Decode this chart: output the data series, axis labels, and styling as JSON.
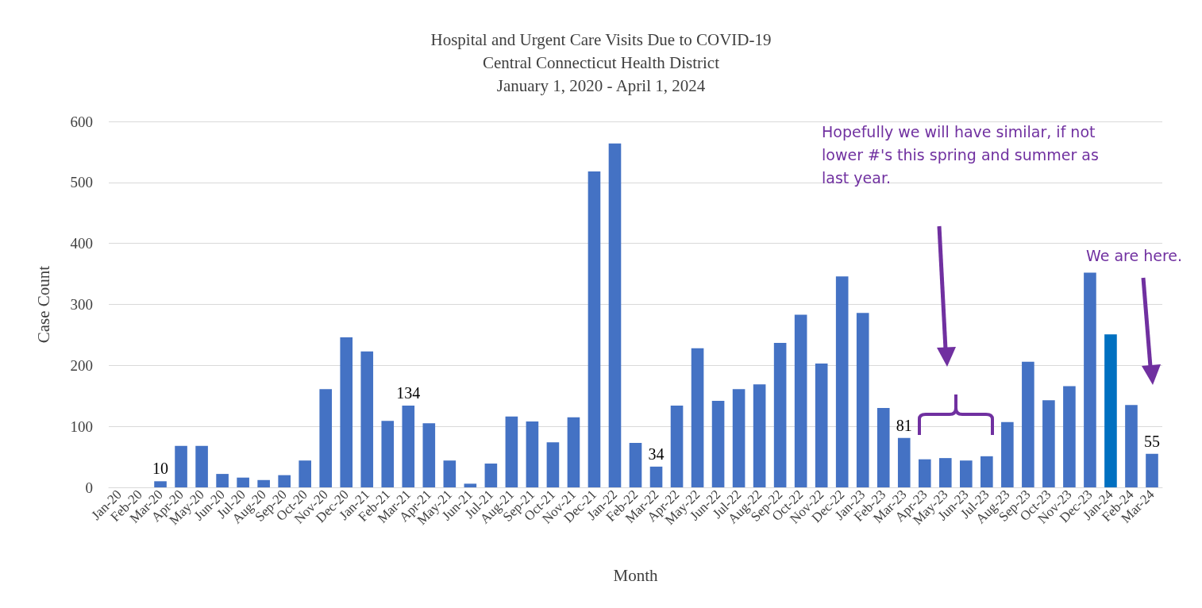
{
  "chart_data": {
    "type": "bar",
    "title": "Hospital and Urgent Care Visits Due to COVID-19",
    "subtitle": "Central Connecticut Health District\nJanuary 1, 2020 - April 1, 2024",
    "xlabel": "Month",
    "ylabel": "Case Count",
    "categories": [
      "Jan-20",
      "Feb-20",
      "Mar-20",
      "Apr-20",
      "May-20",
      "Jun-20",
      "Jul-20",
      "Aug-20",
      "Sep-20",
      "Oct-20",
      "Nov-20",
      "Dec-20",
      "Jan-21",
      "Feb-21",
      "Mar-21",
      "Apr-21",
      "May-21",
      "Jun-21",
      "Jul-21",
      "Aug-21",
      "Sep-21",
      "Oct-21",
      "Nov-21",
      "Dec-21",
      "Jan-22",
      "Feb-22",
      "Mar-22",
      "Apr-22",
      "May-22",
      "Jun-22",
      "Jul-22",
      "Aug-22",
      "Sep-22",
      "Oct-22",
      "Nov-22",
      "Dec-22",
      "Jan-23",
      "Feb-23",
      "Mar-23",
      "Apr-23",
      "May-23",
      "Jun-23",
      "Jul-23",
      "Aug-23",
      "Sep-23",
      "Oct-23",
      "Nov-23",
      "Dec-23",
      "Jan-24",
      "Feb-24",
      "Mar-24"
    ],
    "values": [
      0,
      0,
      10,
      68,
      68,
      22,
      16,
      12,
      20,
      44,
      161,
      246,
      223,
      109,
      134,
      105,
      44,
      6,
      39,
      116,
      108,
      74,
      115,
      518,
      564,
      73,
      34,
      134,
      228,
      142,
      161,
      169,
      237,
      283,
      203,
      346,
      286,
      130,
      81,
      46,
      48,
      44,
      51,
      107,
      206,
      143,
      166,
      352,
      251,
      135,
      55
    ],
    "value_labels": [
      null,
      null,
      "10",
      null,
      null,
      null,
      null,
      null,
      null,
      null,
      null,
      null,
      null,
      null,
      "134",
      null,
      null,
      null,
      null,
      null,
      null,
      null,
      null,
      null,
      null,
      null,
      "34",
      null,
      null,
      null,
      null,
      null,
      null,
      null,
      null,
      null,
      null,
      null,
      "81",
      null,
      null,
      null,
      null,
      null,
      null,
      null,
      null,
      null,
      null,
      null,
      "55"
    ],
    "colors": [
      "#4472c4",
      "#4472c4",
      "#4472c4",
      "#4472c4",
      "#4472c4",
      "#4472c4",
      "#4472c4",
      "#4472c4",
      "#4472c4",
      "#4472c4",
      "#4472c4",
      "#4472c4",
      "#4472c4",
      "#4472c4",
      "#4472c4",
      "#4472c4",
      "#4472c4",
      "#4472c4",
      "#4472c4",
      "#4472c4",
      "#4472c4",
      "#4472c4",
      "#4472c4",
      "#4472c4",
      "#4472c4",
      "#4472c4",
      "#4472c4",
      "#4472c4",
      "#4472c4",
      "#4472c4",
      "#4472c4",
      "#4472c4",
      "#4472c4",
      "#4472c4",
      "#4472c4",
      "#4472c4",
      "#4472c4",
      "#4472c4",
      "#4472c4",
      "#4472c4",
      "#4472c4",
      "#4472c4",
      "#4472c4",
      "#4472c4",
      "#4472c4",
      "#4472c4",
      "#4472c4",
      "#4472c4",
      "#0070c0",
      "#4472c4",
      "#4472c4"
    ],
    "ylim": [
      0,
      600
    ],
    "yticks": [
      0,
      100,
      200,
      300,
      400,
      500,
      600
    ],
    "grid": "y",
    "annotations": [
      "Hopefully we will have similar, if not lower #'s this spring and summer as last year.",
      "We are here."
    ]
  }
}
